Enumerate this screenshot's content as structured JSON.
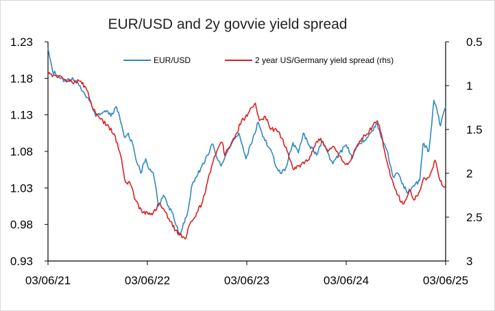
{
  "chart_data": {
    "type": "line",
    "title": "EUR/USD and 2y govvie yield spread",
    "xlabel": "",
    "ylabel_left": "",
    "ylabel_right": "",
    "x_tick_labels": [
      "03/06/21",
      "03/06/22",
      "03/06/23",
      "03/06/24",
      "03/06/25"
    ],
    "x_range": [
      "2021-06-03",
      "2025-06-03"
    ],
    "y_left": {
      "ticks": [
        "0.93",
        "0.98",
        "1.03",
        "1.08",
        "1.13",
        "1.18",
        "1.23"
      ],
      "range": [
        0.93,
        1.23
      ]
    },
    "y_right": {
      "ticks": [
        "0.5",
        "1",
        "1.5",
        "2",
        "2.5",
        "3"
      ],
      "range": [
        0.5,
        3.0
      ],
      "reversed": true
    },
    "legend_position": "top",
    "grid": false,
    "series": [
      {
        "name": "EUR/USD",
        "color": "#2e86c1",
        "axis": "left",
        "points": [
          [
            "2021-06-03",
            1.222
          ],
          [
            "2021-06-20",
            1.19
          ],
          [
            "2021-07-15",
            1.181
          ],
          [
            "2021-08-10",
            1.176
          ],
          [
            "2021-09-01",
            1.181
          ],
          [
            "2021-09-25",
            1.17
          ],
          [
            "2021-10-15",
            1.16
          ],
          [
            "2021-11-05",
            1.148
          ],
          [
            "2021-11-25",
            1.128
          ],
          [
            "2021-12-15",
            1.132
          ],
          [
            "2022-01-05",
            1.136
          ],
          [
            "2022-01-20",
            1.128
          ],
          [
            "2022-02-10",
            1.141
          ],
          [
            "2022-02-25",
            1.12
          ],
          [
            "2022-03-10",
            1.1
          ],
          [
            "2022-03-25",
            1.105
          ],
          [
            "2022-04-10",
            1.09
          ],
          [
            "2022-04-25",
            1.065
          ],
          [
            "2022-05-10",
            1.05
          ],
          [
            "2022-05-28",
            1.07
          ],
          [
            "2022-06-10",
            1.055
          ],
          [
            "2022-06-25",
            1.05
          ],
          [
            "2022-07-14",
            1.005
          ],
          [
            "2022-08-01",
            1.02
          ],
          [
            "2022-08-20",
            1.005
          ],
          [
            "2022-09-05",
            0.995
          ],
          [
            "2022-09-28",
            0.965
          ],
          [
            "2022-10-10",
            0.975
          ],
          [
            "2022-10-28",
            0.995
          ],
          [
            "2022-11-15",
            1.035
          ],
          [
            "2022-12-01",
            1.045
          ],
          [
            "2022-12-20",
            1.06
          ],
          [
            "2023-01-10",
            1.075
          ],
          [
            "2023-01-30",
            1.09
          ],
          [
            "2023-02-15",
            1.07
          ],
          [
            "2023-03-01",
            1.06
          ],
          [
            "2023-03-25",
            1.08
          ],
          [
            "2023-04-15",
            1.098
          ],
          [
            "2023-05-05",
            1.105
          ],
          [
            "2023-05-31",
            1.07
          ],
          [
            "2023-06-20",
            1.09
          ],
          [
            "2023-07-15",
            1.12
          ],
          [
            "2023-08-01",
            1.1
          ],
          [
            "2023-08-25",
            1.085
          ],
          [
            "2023-09-25",
            1.055
          ],
          [
            "2023-10-05",
            1.05
          ],
          [
            "2023-10-25",
            1.058
          ],
          [
            "2023-11-20",
            1.092
          ],
          [
            "2023-12-10",
            1.078
          ],
          [
            "2023-12-28",
            1.105
          ],
          [
            "2024-01-20",
            1.088
          ],
          [
            "2024-02-15",
            1.075
          ],
          [
            "2024-03-08",
            1.094
          ],
          [
            "2024-04-15",
            1.063
          ],
          [
            "2024-05-10",
            1.078
          ],
          [
            "2024-06-03",
            1.089
          ],
          [
            "2024-06-25",
            1.07
          ],
          [
            "2024-07-15",
            1.09
          ],
          [
            "2024-08-10",
            1.095
          ],
          [
            "2024-09-25",
            1.118
          ],
          [
            "2024-10-10",
            1.098
          ],
          [
            "2024-10-30",
            1.082
          ],
          [
            "2024-11-22",
            1.045
          ],
          [
            "2024-12-10",
            1.05
          ],
          [
            "2025-01-13",
            1.023
          ],
          [
            "2025-02-05",
            1.033
          ],
          [
            "2025-02-28",
            1.04
          ],
          [
            "2025-03-12",
            1.09
          ],
          [
            "2025-04-02",
            1.08
          ],
          [
            "2025-04-21",
            1.15
          ],
          [
            "2025-05-05",
            1.131
          ],
          [
            "2025-05-15",
            1.115
          ],
          [
            "2025-05-28",
            1.135
          ],
          [
            "2025-06-03",
            1.142
          ]
        ]
      },
      {
        "name": "2 year US/Germany yield spread (rhs)",
        "color": "#d91f1f",
        "axis": "right",
        "points": [
          [
            "2021-06-03",
            0.87
          ],
          [
            "2021-07-01",
            0.88
          ],
          [
            "2021-08-01",
            0.93
          ],
          [
            "2021-09-01",
            0.97
          ],
          [
            "2021-09-28",
            0.95
          ],
          [
            "2021-10-20",
            1.02
          ],
          [
            "2021-11-10",
            1.22
          ],
          [
            "2021-12-05",
            1.35
          ],
          [
            "2022-01-05",
            1.45
          ],
          [
            "2022-02-01",
            1.55
          ],
          [
            "2022-02-25",
            1.8
          ],
          [
            "2022-03-15",
            2.1
          ],
          [
            "2022-03-30",
            2.1
          ],
          [
            "2022-04-20",
            2.3
          ],
          [
            "2022-05-15",
            2.45
          ],
          [
            "2022-06-10",
            2.45
          ],
          [
            "2022-06-25",
            2.45
          ],
          [
            "2022-07-15",
            2.35
          ],
          [
            "2022-08-01",
            2.4
          ],
          [
            "2022-08-25",
            2.55
          ],
          [
            "2022-09-15",
            2.65
          ],
          [
            "2022-10-01",
            2.7
          ],
          [
            "2022-10-20",
            2.75
          ],
          [
            "2022-11-10",
            2.55
          ],
          [
            "2022-12-01",
            2.45
          ],
          [
            "2022-12-20",
            2.35
          ],
          [
            "2023-01-10",
            2.1
          ],
          [
            "2023-02-01",
            1.85
          ],
          [
            "2023-02-20",
            1.7
          ],
          [
            "2023-03-05",
            1.65
          ],
          [
            "2023-03-15",
            1.8
          ],
          [
            "2023-04-01",
            1.7
          ],
          [
            "2023-04-25",
            1.55
          ],
          [
            "2023-05-15",
            1.4
          ],
          [
            "2023-06-05",
            1.35
          ],
          [
            "2023-06-20",
            1.25
          ],
          [
            "2023-07-05",
            1.2
          ],
          [
            "2023-07-20",
            1.4
          ],
          [
            "2023-08-10",
            1.35
          ],
          [
            "2023-08-30",
            1.5
          ],
          [
            "2023-09-20",
            1.5
          ],
          [
            "2023-10-10",
            1.6
          ],
          [
            "2023-10-30",
            1.75
          ],
          [
            "2023-11-20",
            1.95
          ],
          [
            "2023-12-20",
            1.9
          ],
          [
            "2024-01-15",
            1.85
          ],
          [
            "2024-02-05",
            1.7
          ],
          [
            "2024-03-01",
            1.6
          ],
          [
            "2024-03-28",
            1.75
          ],
          [
            "2024-04-20",
            1.7
          ],
          [
            "2024-05-10",
            1.8
          ],
          [
            "2024-06-01",
            1.9
          ],
          [
            "2024-06-20",
            1.85
          ],
          [
            "2024-07-10",
            1.7
          ],
          [
            "2024-07-30",
            1.6
          ],
          [
            "2024-08-20",
            1.55
          ],
          [
            "2024-09-10",
            1.45
          ],
          [
            "2024-09-25",
            1.4
          ],
          [
            "2024-10-10",
            1.55
          ],
          [
            "2024-10-25",
            1.8
          ],
          [
            "2024-11-15",
            2.05
          ],
          [
            "2024-12-10",
            2.25
          ],
          [
            "2024-12-28",
            2.35
          ],
          [
            "2025-01-20",
            2.2
          ],
          [
            "2025-02-10",
            2.3
          ],
          [
            "2025-02-28",
            2.2
          ],
          [
            "2025-03-15",
            2.05
          ],
          [
            "2025-04-01",
            2.05
          ],
          [
            "2025-04-15",
            1.95
          ],
          [
            "2025-04-25",
            1.85
          ],
          [
            "2025-05-10",
            2.05
          ],
          [
            "2025-05-25",
            2.15
          ],
          [
            "2025-06-03",
            2.15
          ]
        ]
      }
    ]
  }
}
